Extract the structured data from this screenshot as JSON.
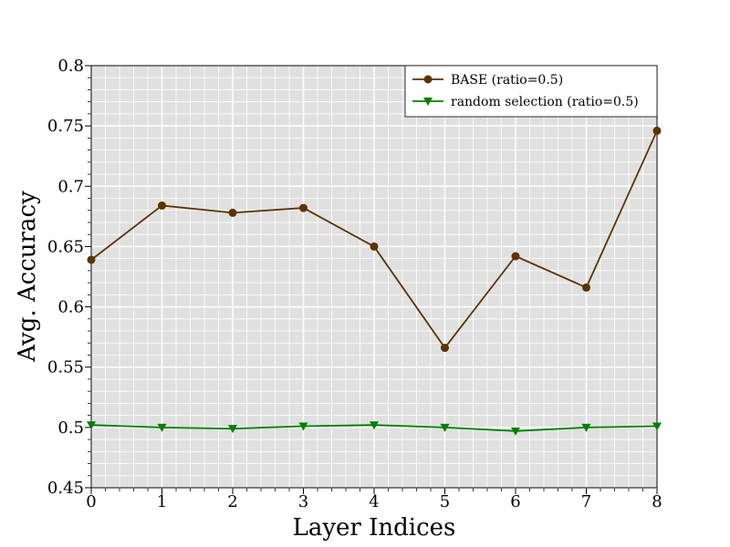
{
  "chart_data": {
    "type": "line",
    "x_label": "Layer Indices",
    "y_label": "Avg. Accuracy",
    "x": [
      0,
      1,
      2,
      3,
      4,
      5,
      6,
      7,
      8
    ],
    "series": [
      {
        "name": "BASE (ratio=0.5)",
        "color": "#5c3300",
        "marker": "circle",
        "values": [
          0.639,
          0.684,
          0.678,
          0.682,
          0.65,
          0.566,
          0.642,
          0.616,
          0.746
        ]
      },
      {
        "name": "random selection (ratio=0.5)",
        "color": "#008000",
        "marker": "triangle-down",
        "values": [
          0.502,
          0.5,
          0.499,
          0.501,
          0.502,
          0.5,
          0.497,
          0.5,
          0.501
        ]
      }
    ],
    "xlim": [
      0,
      8
    ],
    "xticks": [
      0,
      1,
      2,
      3,
      4,
      5,
      6,
      7,
      8
    ],
    "ylim": [
      0.45,
      0.8
    ],
    "yticks": [
      0.45,
      0.5,
      0.55,
      0.6,
      0.65,
      0.7,
      0.75,
      0.8
    ],
    "grid": true,
    "minor_grid": true,
    "background": "#e0e0e0",
    "legend": "upper right"
  }
}
